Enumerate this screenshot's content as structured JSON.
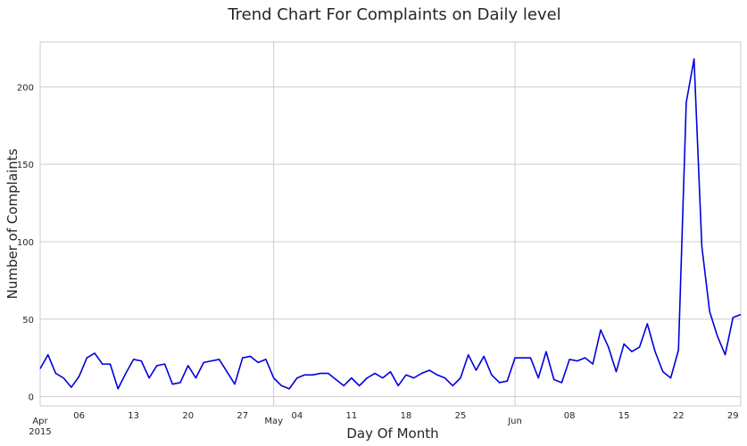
{
  "chart_data": {
    "type": "line",
    "title": "Trend Chart For Complaints on Daily level",
    "xlabel": "Day Of Month",
    "ylabel": "Number  of  Complaints",
    "x_start": "2015-04-01",
    "x_end": "2015-06-30",
    "ylim": [
      -6,
      229
    ],
    "y_ticks": [
      0,
      50,
      100,
      150,
      200
    ],
    "grid": true,
    "line_color": "#0000dd",
    "x_minor_ticks": [
      {
        "date": "2015-04-06",
        "label": "06"
      },
      {
        "date": "2015-04-13",
        "label": "13"
      },
      {
        "date": "2015-04-20",
        "label": "20"
      },
      {
        "date": "2015-04-27",
        "label": "27"
      },
      {
        "date": "2015-05-04",
        "label": "04"
      },
      {
        "date": "2015-05-11",
        "label": "11"
      },
      {
        "date": "2015-05-18",
        "label": "18"
      },
      {
        "date": "2015-05-25",
        "label": "25"
      },
      {
        "date": "2015-06-08",
        "label": "08"
      },
      {
        "date": "2015-06-15",
        "label": "15"
      },
      {
        "date": "2015-06-22",
        "label": "22"
      },
      {
        "date": "2015-06-29",
        "label": "29"
      }
    ],
    "x_major_ticks": [
      {
        "date": "2015-04-01",
        "label": "Apr",
        "sublabel": "2015"
      },
      {
        "date": "2015-05-01",
        "label": "May",
        "sublabel": ""
      },
      {
        "date": "2015-06-01",
        "label": "Jun",
        "sublabel": ""
      }
    ],
    "series": [
      {
        "dates": [
          "2015-04-01",
          "2015-04-02",
          "2015-04-03",
          "2015-04-04",
          "2015-04-05",
          "2015-04-06",
          "2015-04-07",
          "2015-04-08",
          "2015-04-09",
          "2015-04-10",
          "2015-04-11",
          "2015-04-12",
          "2015-04-13",
          "2015-04-14",
          "2015-04-15",
          "2015-04-16",
          "2015-04-17",
          "2015-04-18",
          "2015-04-19",
          "2015-04-20",
          "2015-04-21",
          "2015-04-22",
          "2015-04-23",
          "2015-04-24",
          "2015-04-25",
          "2015-04-26",
          "2015-04-27",
          "2015-04-28",
          "2015-04-29",
          "2015-04-30",
          "2015-05-01",
          "2015-05-02",
          "2015-05-03",
          "2015-05-04",
          "2015-05-05",
          "2015-05-06",
          "2015-05-07",
          "2015-05-08",
          "2015-05-09",
          "2015-05-10",
          "2015-05-11",
          "2015-05-12",
          "2015-05-13",
          "2015-05-14",
          "2015-05-15",
          "2015-05-16",
          "2015-05-17",
          "2015-05-18",
          "2015-05-19",
          "2015-05-20",
          "2015-05-21",
          "2015-05-22",
          "2015-05-23",
          "2015-05-24",
          "2015-05-25",
          "2015-05-26",
          "2015-05-27",
          "2015-05-28",
          "2015-05-29",
          "2015-05-30",
          "2015-05-31",
          "2015-06-01",
          "2015-06-02",
          "2015-06-03",
          "2015-06-04",
          "2015-06-05",
          "2015-06-06",
          "2015-06-07",
          "2015-06-08",
          "2015-06-09",
          "2015-06-10",
          "2015-06-11",
          "2015-06-12",
          "2015-06-13",
          "2015-06-14",
          "2015-06-15",
          "2015-06-16",
          "2015-06-17",
          "2015-06-18",
          "2015-06-19",
          "2015-06-20",
          "2015-06-21",
          "2015-06-22",
          "2015-06-23",
          "2015-06-24",
          "2015-06-25",
          "2015-06-26",
          "2015-06-27",
          "2015-06-28",
          "2015-06-29",
          "2015-06-30"
        ],
        "values": [
          18,
          27,
          15,
          12,
          6,
          13,
          25,
          28,
          21,
          21,
          5,
          15,
          24,
          23,
          12,
          20,
          21,
          8,
          9,
          20,
          12,
          22,
          23,
          24,
          16,
          8,
          25,
          26,
          22,
          24,
          12,
          7,
          5,
          12,
          14,
          14,
          15,
          15,
          11,
          7,
          12,
          7,
          12,
          15,
          12,
          16,
          7,
          14,
          12,
          15,
          17,
          14,
          12,
          7,
          12,
          27,
          17,
          26,
          14,
          9,
          10,
          25,
          25,
          25,
          12,
          29,
          11,
          9,
          24,
          23,
          25,
          21,
          43,
          32,
          16,
          34,
          29,
          32,
          47,
          29,
          16,
          12,
          30,
          190,
          218,
          97,
          55,
          39,
          27,
          51,
          53
        ]
      }
    ]
  }
}
